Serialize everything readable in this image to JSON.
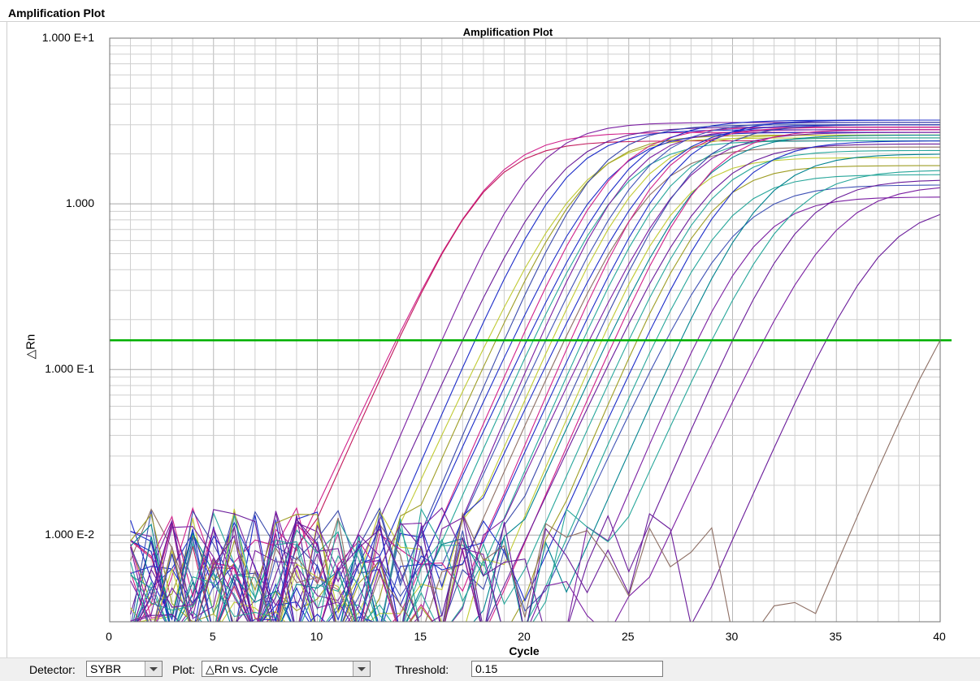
{
  "window": {
    "title": "Amplification Plot"
  },
  "controls": {
    "detector_label": "Detector:",
    "detector_value": "SYBR",
    "plot_label": "Plot:",
    "plot_value": "△Rn vs. Cycle",
    "threshold_label": "Threshold:",
    "threshold_value": "0.15"
  },
  "chart_data": {
    "type": "line",
    "title": "Amplification Plot",
    "xlabel": "Cycle",
    "ylabel": "△Rn",
    "x_range": [
      0,
      40
    ],
    "y_range": [
      0.003,
      10
    ],
    "y_scale": "log",
    "grid": true,
    "x_ticks": [
      0,
      5,
      10,
      15,
      20,
      25,
      30,
      35,
      40
    ],
    "x_tick_labels": [
      "0",
      "5",
      "10",
      "15",
      "20",
      "25",
      "30",
      "35",
      "40"
    ],
    "y_ticks": [
      10,
      1,
      0.1,
      0.01
    ],
    "y_tick_labels": [
      "1.000 E+1",
      "1.000",
      "1.000 E-1",
      "1.000 E-2"
    ],
    "threshold": {
      "value": 0.15,
      "color": "#00b000"
    },
    "curve_colors": [
      "#d0208a",
      "#7b1fa2",
      "#1c2cc8",
      "#3f51b5",
      "#c0ca33",
      "#26a69a",
      "#00838f",
      "#8d6e63",
      "#6a1b9a",
      "#3949ab"
    ],
    "series": [
      {
        "ct": 13.8,
        "plateau": 2.7,
        "color": "#d0208a"
      },
      {
        "ct": 13.9,
        "plateau": 2.4,
        "color": "#c2185b"
      },
      {
        "ct": 16.0,
        "plateau": 3.1,
        "color": "#7b1fa2"
      },
      {
        "ct": 17.0,
        "plateau": 2.9,
        "color": "#6a1b9a"
      },
      {
        "ct": 17.6,
        "plateau": 2.8,
        "color": "#1c2cc8"
      },
      {
        "ct": 18.2,
        "plateau": 2.5,
        "color": "#c0ca33"
      },
      {
        "ct": 18.6,
        "plateau": 2.6,
        "color": "#9e9d24"
      },
      {
        "ct": 19.0,
        "plateau": 3.0,
        "color": "#3949ab"
      },
      {
        "ct": 19.4,
        "plateau": 2.7,
        "color": "#1c2cc8"
      },
      {
        "ct": 19.8,
        "plateau": 2.9,
        "color": "#d0208a"
      },
      {
        "ct": 20.1,
        "plateau": 3.2,
        "color": "#1c2cc8"
      },
      {
        "ct": 20.4,
        "plateau": 2.4,
        "color": "#26a69a"
      },
      {
        "ct": 20.7,
        "plateau": 2.8,
        "color": "#7b1fa2"
      },
      {
        "ct": 21.0,
        "plateau": 3.1,
        "color": "#3f51b5"
      },
      {
        "ct": 21.3,
        "plateau": 2.6,
        "color": "#c0ca33"
      },
      {
        "ct": 21.6,
        "plateau": 3.0,
        "color": "#1c2cc8"
      },
      {
        "ct": 21.9,
        "plateau": 2.2,
        "color": "#8d6e63"
      },
      {
        "ct": 22.2,
        "plateau": 2.9,
        "color": "#d0208a"
      },
      {
        "ct": 22.5,
        "plateau": 3.2,
        "color": "#1c2cc8"
      },
      {
        "ct": 22.8,
        "plateau": 2.5,
        "color": "#26a69a"
      },
      {
        "ct": 23.1,
        "plateau": 2.7,
        "color": "#7b1fa2"
      },
      {
        "ct": 23.4,
        "plateau": 3.0,
        "color": "#3949ab"
      },
      {
        "ct": 23.7,
        "plateau": 1.9,
        "color": "#c0ca33"
      },
      {
        "ct": 24.0,
        "plateau": 2.6,
        "color": "#00838f"
      },
      {
        "ct": 24.3,
        "plateau": 2.8,
        "color": "#d0208a"
      },
      {
        "ct": 24.6,
        "plateau": 2.3,
        "color": "#6a1b9a"
      },
      {
        "ct": 25.0,
        "plateau": 2.1,
        "color": "#26a69a"
      },
      {
        "ct": 25.4,
        "plateau": 1.7,
        "color": "#9e9d24"
      },
      {
        "ct": 25.8,
        "plateau": 2.4,
        "color": "#1c2cc8"
      },
      {
        "ct": 26.3,
        "plateau": 1.5,
        "color": "#26a69a"
      },
      {
        "ct": 26.8,
        "plateau": 1.3,
        "color": "#3f51b5"
      },
      {
        "ct": 27.5,
        "plateau": 2.0,
        "color": "#00838f"
      },
      {
        "ct": 28.3,
        "plateau": 1.1,
        "color": "#7b1fa2"
      },
      {
        "ct": 29.0,
        "plateau": 1.6,
        "color": "#26a69a"
      },
      {
        "ct": 30.0,
        "plateau": 1.4,
        "color": "#6a1b9a"
      },
      {
        "ct": 31.5,
        "plateau": 1.3,
        "color": "#7b1fa2"
      },
      {
        "ct": 34.5,
        "plateau": 1.0,
        "color": "#6a1b9a"
      },
      {
        "ct": 40.0,
        "plateau": 0.6,
        "color": "#8d6e63"
      }
    ]
  }
}
